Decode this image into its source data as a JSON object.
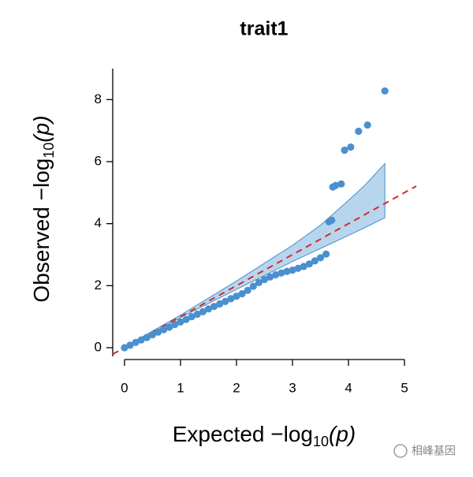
{
  "chart_data": {
    "type": "scatter",
    "title": "trait1",
    "x_label": {
      "text": "Expected −log",
      "subscript": "10",
      "argument": "(p)"
    },
    "y_label": {
      "text": "Observed −log",
      "subscript": "10",
      "argument": "(p)"
    },
    "x": [
      0,
      0.1,
      0.2,
      0.3,
      0.4,
      0.5,
      0.6,
      0.7,
      0.8,
      0.9,
      1.0,
      1.1,
      1.2,
      1.3,
      1.4,
      1.5,
      1.6,
      1.7,
      1.8,
      1.9,
      2.0,
      2.1,
      2.2,
      2.3,
      2.4,
      2.5,
      2.6,
      2.7,
      2.8,
      2.9,
      3.0,
      3.1,
      3.2,
      3.3,
      3.4,
      3.5,
      3.6,
      3.65,
      3.7,
      3.72,
      3.77,
      3.87,
      3.93,
      4.04,
      4.18,
      4.34,
      4.65
    ],
    "values": [
      0,
      0.08,
      0.17,
      0.25,
      0.33,
      0.42,
      0.5,
      0.58,
      0.66,
      0.75,
      0.83,
      0.91,
      1.0,
      1.08,
      1.16,
      1.25,
      1.33,
      1.41,
      1.49,
      1.58,
      1.66,
      1.74,
      1.85,
      1.98,
      2.1,
      2.2,
      2.28,
      2.35,
      2.41,
      2.46,
      2.5,
      2.56,
      2.62,
      2.7,
      2.8,
      2.9,
      3.02,
      4.06,
      4.11,
      5.18,
      5.23,
      5.28,
      6.37,
      6.47,
      6.98,
      7.18,
      8.28
    ],
    "color": "#4a90cf",
    "band": {
      "x": [
        0,
        1,
        2,
        3,
        3.5,
        4,
        4.3,
        4.65
      ],
      "upper": [
        0.02,
        1.05,
        2.15,
        3.3,
        3.95,
        4.75,
        5.25,
        5.94
      ],
      "lower": [
        0,
        0.97,
        1.88,
        2.78,
        3.2,
        3.62,
        3.88,
        4.19
      ],
      "color": "#b7d6ee",
      "edge_color": "#4a8fc8"
    },
    "reference_line": {
      "slope": 1,
      "intercept": 0,
      "color": "#d42a2a"
    },
    "xlim": [
      -0.21,
      5.21
    ],
    "ylim": [
      -0.28,
      9.0
    ],
    "xticks": [
      0,
      1,
      2,
      3,
      4,
      5
    ],
    "yticks": [
      0,
      2,
      4,
      6,
      8
    ]
  },
  "watermark": "相峰基因"
}
